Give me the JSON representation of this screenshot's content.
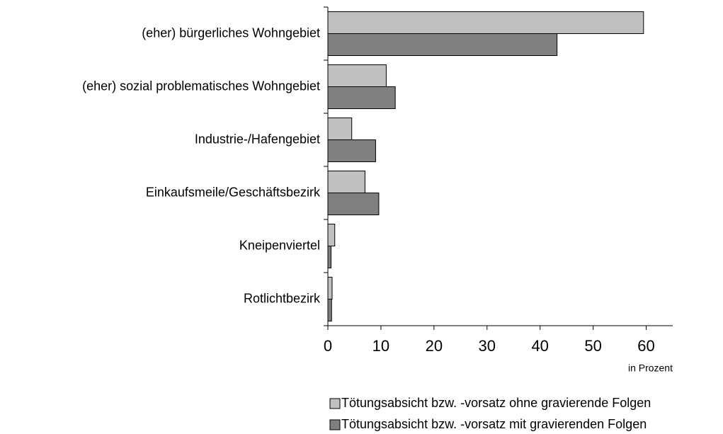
{
  "chart_data": {
    "type": "barh",
    "categories": [
      "(eher) bürgerliches Wohngebiet",
      "(eher) sozial problematisches Wohngebiet",
      "Industrie-/Hafengebiet",
      "Einkaufsmeile/Geschäftsbezirk",
      "Kneipenviertel",
      "Rotlichtbezirk"
    ],
    "series": [
      {
        "name": "Tötungsabsicht bzw. -vorsatz ohne gravierende Folgen",
        "color": "#c0c0c0",
        "values": [
          59.5,
          11,
          4.5,
          7,
          1.3,
          0.8
        ]
      },
      {
        "name": "Tötungsabsicht bzw. -vorsatz mit gravierenden Folgen",
        "color": "#808080",
        "values": [
          43.2,
          12.7,
          9,
          9.6,
          0.6,
          0.7
        ]
      }
    ],
    "xlabel": "in Prozent",
    "xlim": [
      0,
      65
    ],
    "xticks": [
      0,
      10,
      20,
      30,
      40,
      50,
      60
    ],
    "legend": "bottom-right"
  }
}
